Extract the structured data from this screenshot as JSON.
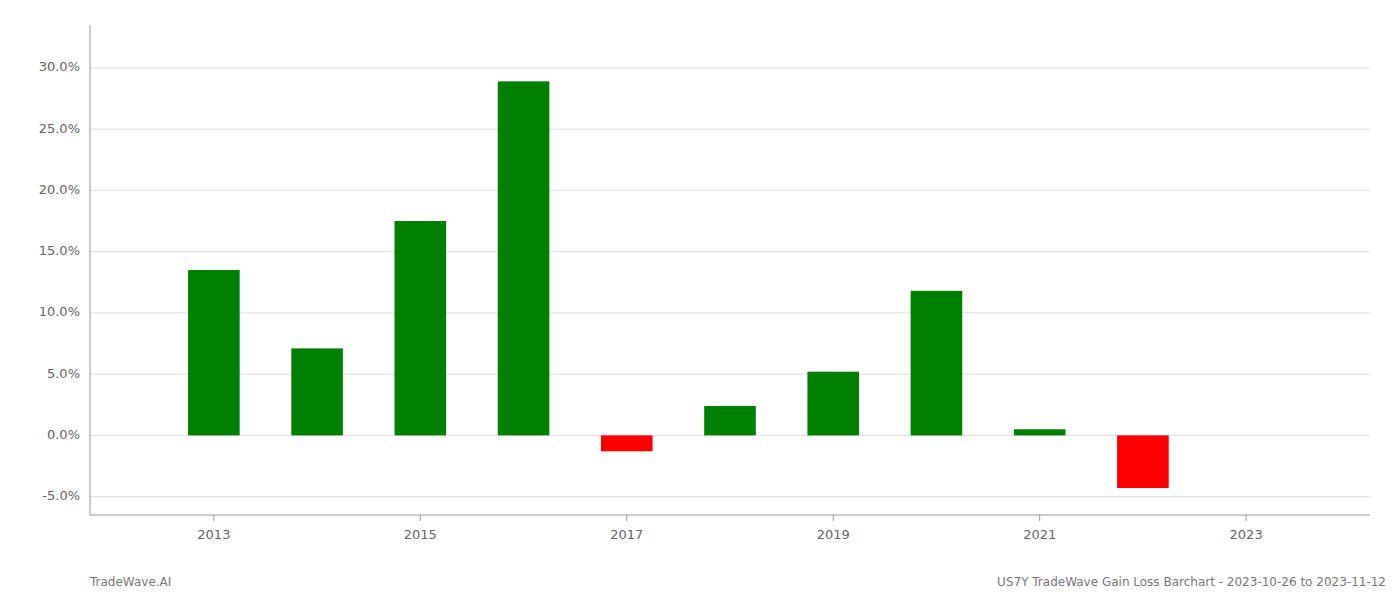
{
  "chart_data": {
    "type": "bar",
    "x": [
      2013,
      2014,
      2015,
      2016,
      2017,
      2018,
      2019,
      2020,
      2021,
      2022,
      2023
    ],
    "values": [
      0.135,
      0.071,
      0.175,
      0.289,
      -0.013,
      0.024,
      0.052,
      0.118,
      0.005,
      -0.043,
      null
    ],
    "colors": [
      "#008000",
      "#008000",
      "#008000",
      "#008000",
      "#ff0000",
      "#008000",
      "#008000",
      "#008000",
      "#008000",
      "#ff0000",
      null
    ],
    "ylim": [
      -0.065,
      0.335
    ],
    "yticks": [
      {
        "value": -0.05,
        "label": "-5.0%"
      },
      {
        "value": 0.0,
        "label": "0.0%"
      },
      {
        "value": 0.05,
        "label": "5.0%"
      },
      {
        "value": 0.1,
        "label": "10.0%"
      },
      {
        "value": 0.15,
        "label": "15.0%"
      },
      {
        "value": 0.2,
        "label": "20.0%"
      },
      {
        "value": 0.25,
        "label": "25.0%"
      },
      {
        "value": 0.3,
        "label": "30.0%"
      }
    ],
    "xlim": [
      2011.8,
      2024.2
    ],
    "xticks": [
      2013,
      2015,
      2017,
      2019,
      2021,
      2023
    ],
    "grid": true,
    "annotations": [
      "TradeWave.AI",
      "US7Y TradeWave Gain Loss Barchart - 2023-10-26 to 2023-11-12"
    ]
  }
}
